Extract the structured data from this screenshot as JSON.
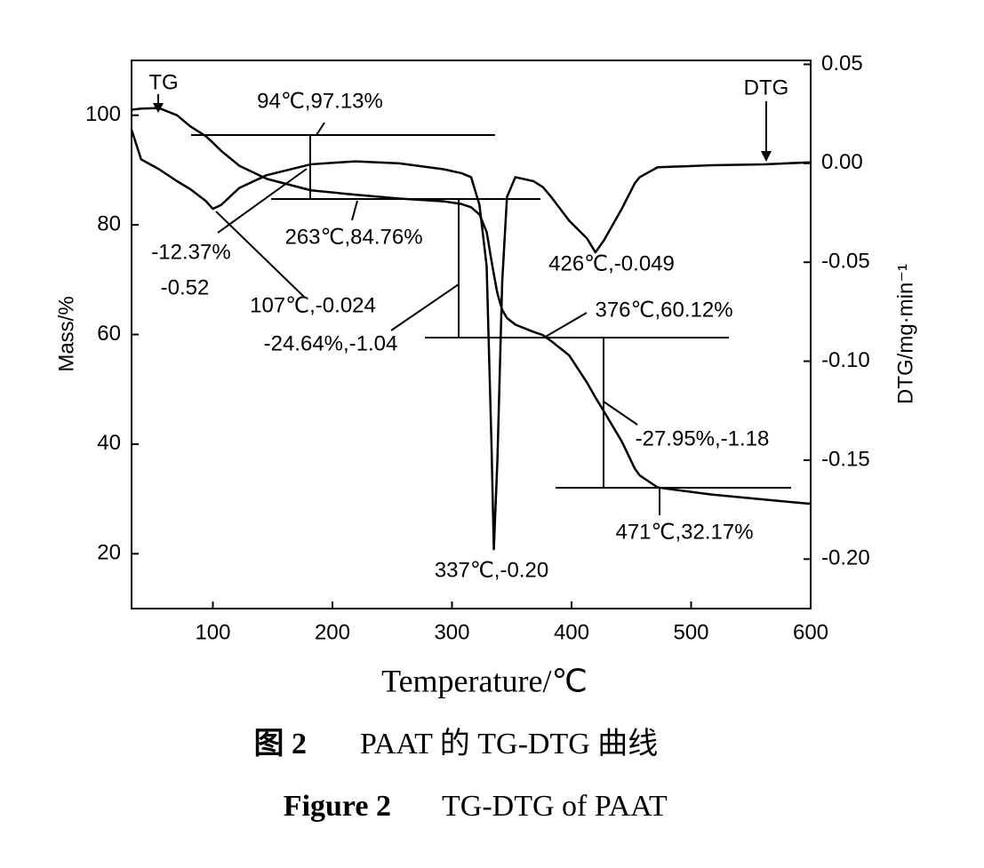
{
  "chart_data": {
    "type": "line",
    "xlabel": "Temperature/℃",
    "ylabel": "Mass/%",
    "y2label": "DTG/mg·min⁻¹",
    "caption_cn_label": "图 2",
    "caption_cn_text": "PAAT 的 TG-DTG 曲线",
    "caption_en_label": "Figure 2",
    "caption_en_text": "TG-DTG of PAAT",
    "x": [
      32,
      40,
      55,
      70,
      81,
      94,
      100,
      107,
      122,
      145,
      182,
      219,
      256,
      293,
      308,
      316,
      323,
      329,
      333,
      335,
      338,
      342,
      346,
      353,
      368,
      376,
      383,
      398,
      413,
      420,
      427,
      442,
      453,
      457,
      472,
      517,
      561,
      600
    ],
    "series": [
      {
        "name": "TG",
        "color": "#000000",
        "axis": "y",
        "values": [
          101,
          101.2,
          101.3,
          100,
          98,
          96.2,
          95,
          93.5,
          90.8,
          88.4,
          86.3,
          85.5,
          84.8,
          84.3,
          83.8,
          83.2,
          81.9,
          78.7,
          73.5,
          71,
          67.5,
          64.5,
          63,
          61.8,
          60.5,
          59.9,
          58.8,
          56.2,
          51.2,
          48.5,
          46,
          40.5,
          35.5,
          34.3,
          32.1,
          30.8,
          29.9,
          29.1
        ]
      },
      {
        "name": "DTG",
        "color": "#000000",
        "axis": "y2",
        "values": [
          0.017,
          0.002,
          -0.003,
          -0.009,
          -0.013,
          -0.019,
          -0.023,
          -0.021,
          -0.0125,
          -0.006,
          -0.0005,
          0.001,
          0,
          -0.003,
          -0.005,
          -0.007,
          -0.021,
          -0.052,
          -0.141,
          -0.195,
          -0.15,
          -0.06,
          -0.017,
          -0.007,
          -0.009,
          -0.012,
          -0.017,
          -0.029,
          -0.038,
          -0.045,
          -0.039,
          -0.023,
          -0.01,
          -0.007,
          -0.002,
          -0.001,
          -0.0005,
          0.0005
        ]
      }
    ],
    "xlim": [
      32,
      600
    ],
    "xticks": [
      100,
      200,
      300,
      400,
      500,
      600
    ],
    "ylim": [
      10,
      110
    ],
    "yticks": [
      20,
      40,
      60,
      80,
      100
    ],
    "y2lim": [
      -0.225,
      0.052
    ],
    "y2ticks": [
      0.05,
      {
        "value": 0,
        "label": "0.00"
      },
      -0.05,
      {
        "value": -0.1,
        "label": "-0.10"
      },
      -0.15,
      {
        "value": -0.2,
        "label": "-0.20"
      }
    ],
    "annotations": [
      "94℃,97.13%",
      "-12.37%",
      "-0.52",
      "263℃,84.76%",
      "107℃,-0.024",
      "-24.64%,-1.04",
      "376℃,60.12%",
      "426℃,-0.049",
      "-27.95%,-1.18",
      "471℃,32.17%",
      "337℃,-0.20"
    ]
  }
}
